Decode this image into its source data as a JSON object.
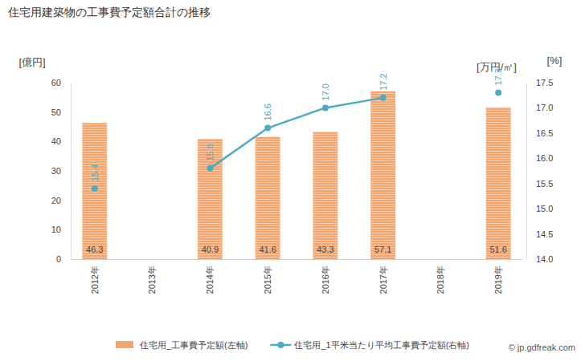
{
  "chart_data": {
    "type": "bar",
    "title": "住宅用建築物の工事費予定額合計の推移",
    "y_label": "[億円]",
    "y2_label": "[%]",
    "annotations": [
      "[万円/㎡]",
      "© jp.gdfreak.com"
    ],
    "categories": [
      "2012年",
      "2013年",
      "2014年",
      "2015年",
      "2016年",
      "2017年",
      "2018年",
      "2019年"
    ],
    "series": [
      {
        "name": "住宅用_工事費予定額(左軸)",
        "type": "bar",
        "color": "#f5a46c",
        "values": [
          46.3,
          null,
          40.9,
          41.6,
          43.3,
          57.1,
          null,
          51.6
        ]
      },
      {
        "name": "住宅用_1平米当たり平均工事費予定額(右軸)",
        "type": "line",
        "axis": "y2",
        "color": "#4aabc6",
        "marker": "circle",
        "values": [
          15.4,
          null,
          15.8,
          16.6,
          17.0,
          17.2,
          null,
          17.3
        ],
        "value_labels": [
          "15.4",
          null,
          "15.8",
          "16.6",
          "17.0",
          "17.2",
          null,
          "17.3"
        ]
      }
    ],
    "ylim": [
      0,
      60
    ],
    "yticks": [
      0,
      10,
      20,
      30,
      40,
      50,
      60
    ],
    "y2lim": [
      14,
      17.5
    ],
    "y2ticks": [
      {
        "value": 14,
        "label": "14.0"
      },
      14.5,
      {
        "value": 15,
        "label": "15.0"
      },
      15.5,
      {
        "value": 16,
        "label": "16.0"
      },
      16.5,
      {
        "value": 17,
        "label": "17.0"
      },
      17.5
    ],
    "grid": false,
    "legend": "bottom",
    "data_labels": true
  }
}
